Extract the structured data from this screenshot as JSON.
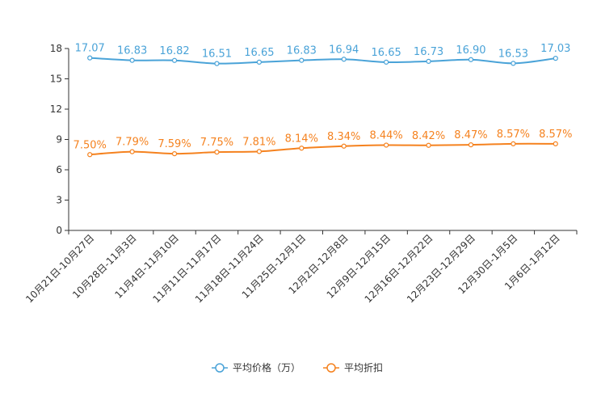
{
  "chart_data": {
    "type": "line",
    "categories": [
      "10月21日-10月27日",
      "10月28日-11月3日",
      "11月4日-11月10日",
      "11月11日-11月17日",
      "11月18日-11月24日",
      "11月25日-12月1日",
      "12月2日-12月8日",
      "12月9日-12月15日",
      "12月16日-12月22日",
      "12月23日-12月29日",
      "12月30日-1月5日",
      "1月6日-1月12日"
    ],
    "ylim": [
      0,
      18
    ],
    "yticks": [
      0,
      3,
      6,
      9,
      12,
      15,
      18
    ],
    "ytick_labels": [
      "0",
      "3",
      "6",
      "9",
      "12",
      "15",
      "18"
    ],
    "series": [
      {
        "name": "平均价格（万）",
        "color": "#4aa3d8",
        "values": [
          17.07,
          16.83,
          16.82,
          16.51,
          16.65,
          16.83,
          16.94,
          16.65,
          16.73,
          16.9,
          16.53,
          17.03
        ],
        "labels": [
          "17.07",
          "16.83",
          "16.82",
          "16.51",
          "16.65",
          "16.83",
          "16.94",
          "16.65",
          "16.73",
          "16.90",
          "16.53",
          "17.03"
        ]
      },
      {
        "name": "平均折扣",
        "color": "#f5821f",
        "values": [
          7.5,
          7.79,
          7.59,
          7.75,
          7.81,
          8.14,
          8.34,
          8.44,
          8.42,
          8.47,
          8.57,
          8.57
        ],
        "labels": [
          "7.50%",
          "7.79%",
          "7.59%",
          "7.75%",
          "7.81%",
          "8.14%",
          "8.34%",
          "8.44%",
          "8.42%",
          "8.47%",
          "8.57%",
          "8.57%"
        ]
      }
    ],
    "legend_position": "bottom-center"
  }
}
